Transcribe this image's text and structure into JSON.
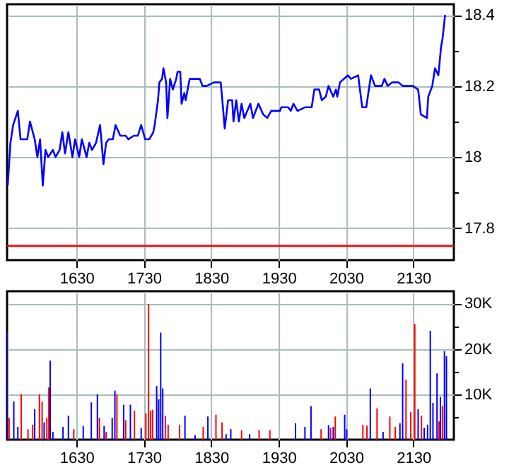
{
  "chart_data": [
    {
      "type": "line",
      "xlim": [
        1527,
        2190
      ],
      "ylim": [
        17.71,
        18.43
      ],
      "grid": true,
      "line_style": "solid",
      "xticks": [
        1630,
        1730,
        1830,
        1930,
        2030,
        2130
      ],
      "yticks": [
        17.8,
        {
          "value": 17.9,
          "label": null
        },
        18,
        {
          "value": 18.1,
          "label": null
        },
        18.2,
        {
          "value": 18.3,
          "label": null
        },
        18.4
      ],
      "ref_lines": [
        {
          "axis": "y",
          "value": 17.75,
          "color": "#ff0000"
        }
      ],
      "series": [
        {
          "color": "#0000ff",
          "x": [
            1528,
            1532,
            1536,
            1543,
            1547,
            1557,
            1561,
            1568,
            1572,
            1576,
            1580,
            1584,
            1588,
            1595,
            1599,
            1605,
            1609,
            1613,
            1618,
            1624,
            1628,
            1634,
            1638,
            1645,
            1649,
            1653,
            1659,
            1665,
            1670,
            1674,
            1678,
            1684,
            1688,
            1695,
            1703,
            1707,
            1715,
            1721,
            1726,
            1732,
            1738,
            1744,
            1746,
            1751,
            1753,
            1757,
            1759,
            1763,
            1765,
            1769,
            1773,
            1778,
            1780,
            1784,
            1786,
            1790,
            1792,
            1798,
            1805,
            1813,
            1817,
            1823,
            1834,
            1844,
            1846,
            1850,
            1855,
            1861,
            1863,
            1867,
            1871,
            1875,
            1879,
            1888,
            1892,
            1900,
            1907,
            1913,
            1919,
            1932,
            1934,
            1944,
            1948,
            1952,
            1958,
            1969,
            1979,
            1983,
            1990,
            1994,
            2000,
            2004,
            2011,
            2015,
            2017,
            2021,
            2027,
            2033,
            2037,
            2048,
            2054,
            2060,
            2067,
            2073,
            2083,
            2087,
            2092,
            2098,
            2108,
            2114,
            2129,
            2137,
            2141,
            2150,
            2152,
            2158,
            2162,
            2167,
            2171,
            2173,
            2177
          ],
          "values": [
            17.92,
            18.04,
            18.09,
            18.13,
            18.05,
            18.05,
            18.1,
            18.05,
            18.0,
            18.05,
            17.92,
            18.02,
            18.0,
            18.02,
            18.0,
            18.02,
            18.07,
            18.01,
            18.07,
            18.0,
            18.05,
            18.0,
            18.05,
            18.0,
            18.04,
            18.02,
            18.04,
            18.09,
            17.98,
            18.04,
            18.05,
            18.05,
            18.09,
            18.06,
            18.06,
            18.05,
            18.06,
            18.06,
            18.09,
            18.05,
            18.05,
            18.07,
            18.09,
            18.16,
            18.21,
            18.22,
            18.25,
            18.21,
            18.11,
            18.22,
            18.19,
            18.22,
            18.24,
            18.24,
            18.15,
            18.18,
            18.16,
            18.22,
            18.22,
            18.22,
            18.2,
            18.2,
            18.21,
            18.21,
            18.17,
            18.08,
            18.16,
            18.16,
            18.1,
            18.16,
            18.1,
            18.15,
            18.11,
            18.15,
            18.11,
            18.15,
            18.12,
            18.11,
            18.13,
            18.13,
            18.14,
            18.14,
            18.13,
            18.15,
            18.13,
            18.14,
            18.14,
            18.19,
            18.19,
            18.16,
            18.17,
            18.2,
            18.17,
            18.19,
            18.17,
            18.21,
            18.22,
            18.23,
            18.22,
            18.23,
            18.14,
            18.14,
            18.23,
            18.2,
            18.2,
            18.22,
            18.2,
            18.21,
            18.21,
            18.2,
            18.2,
            18.19,
            18.12,
            18.11,
            18.17,
            18.2,
            18.25,
            18.23,
            18.31,
            18.33,
            18.4
          ]
        }
      ]
    },
    {
      "type": "bar",
      "xlim": [
        1527,
        2190
      ],
      "ylim": [
        0,
        32700
      ],
      "grid": true,
      "xticks": [
        1630,
        1730,
        1830,
        1930,
        2030,
        2130
      ],
      "yticks": [
        {
          "value": 5000,
          "label": null
        },
        {
          "value": 10000,
          "label": "10K"
        },
        {
          "value": 15000,
          "label": null
        },
        {
          "value": 20000,
          "label": "20K"
        },
        {
          "value": 25000,
          "label": null
        },
        {
          "value": 30000,
          "label": "30K"
        }
      ],
      "series": [
        {
          "color": "#0000ff",
          "x": [
            1527,
            1537,
            1543,
            1568,
            1582,
            1591,
            1595,
            1610,
            1618,
            1640,
            1652,
            1661,
            1671,
            1683,
            1687,
            1700,
            1710,
            1726,
            1749,
            1752,
            1755,
            1758,
            1791,
            1806,
            1825,
            1852,
            1859,
            1887,
            1955,
            1969,
            1978,
            2004,
            2011,
            2028,
            2031,
            2066,
            2085,
            2110,
            2114,
            2137,
            2146,
            2151,
            2155,
            2159,
            2165,
            2170,
            2176,
            2179
          ],
          "values": [
            23800,
            8400,
            2800,
            6700,
            3800,
            17400,
            1700,
            2800,
            5300,
            3000,
            8200,
            10000,
            3000,
            4800,
            10800,
            7700,
            7700,
            2600,
            11800,
            8900,
            23600,
            11300,
            5300,
            1000,
            5100,
            1200,
            2300,
            1200,
            3600,
            2800,
            7400,
            3200,
            2800,
            5500,
            2300,
            11300,
            1700,
            3600,
            16800,
            6700,
            2600,
            3300,
            24000,
            8100,
            14600,
            9400,
            19500,
            18400
          ]
        },
        {
          "color": "#ff0000",
          "x": [
            1530,
            1548,
            1558,
            1565,
            1575,
            1579,
            1586,
            1589,
            1626,
            1664,
            1674,
            1690,
            1703,
            1716,
            1733,
            1737,
            1740,
            1743,
            1762,
            1766,
            1783,
            1818,
            1837,
            1846,
            1875,
            1901,
            1917,
            1993,
            2007,
            2014,
            2055,
            2061,
            2076,
            2095,
            2103,
            2119,
            2126,
            2132,
            2142,
            2168,
            2173
          ],
          "values": [
            4800,
            10000,
            2300,
            3300,
            10000,
            8400,
            4800,
            11500,
            2300,
            4800,
            1700,
            10000,
            4300,
            6400,
            5800,
            29900,
            6400,
            6600,
            5300,
            3300,
            3300,
            2800,
            5500,
            3800,
            2100,
            2100,
            2100,
            2300,
            2600,
            5100,
            3300,
            3100,
            6900,
            5100,
            2800,
            13200,
            6100,
            25500,
            5300,
            4000,
            7400
          ]
        }
      ]
    }
  ]
}
